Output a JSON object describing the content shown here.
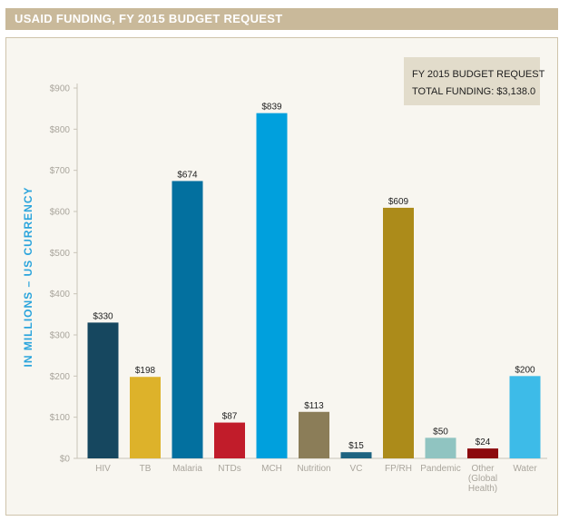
{
  "header": {
    "title": "USAID FUNDING, FY 2015 BUDGET REQUEST"
  },
  "legend_box": {
    "line1": "FY 2015 BUDGET REQUEST",
    "line2": "TOTAL FUNDING: $3,138.0"
  },
  "chart_data": {
    "type": "bar",
    "ylabel": "IN MILLIONS – US CURRENCY",
    "ylim": [
      0,
      900
    ],
    "y_ticks": [
      {
        "value": 0,
        "label": "$0"
      },
      {
        "value": 100,
        "label": "$100"
      },
      {
        "value": 200,
        "label": "$200"
      },
      {
        "value": 300,
        "label": "$300"
      },
      {
        "value": 400,
        "label": "$400"
      },
      {
        "value": 500,
        "label": "$500"
      },
      {
        "value": 600,
        "label": "$600"
      },
      {
        "value": 700,
        "label": "$700"
      },
      {
        "value": 800,
        "label": "$800"
      },
      {
        "value": 900,
        "label": "$900"
      }
    ],
    "categories": [
      {
        "lines": [
          "HIV"
        ]
      },
      {
        "lines": [
          "TB"
        ]
      },
      {
        "lines": [
          "Malaria"
        ]
      },
      {
        "lines": [
          "NTDs"
        ]
      },
      {
        "lines": [
          "MCH"
        ]
      },
      {
        "lines": [
          "Nutrition"
        ]
      },
      {
        "lines": [
          "VC"
        ]
      },
      {
        "lines": [
          "FP/RH"
        ]
      },
      {
        "lines": [
          "Pandemic"
        ]
      },
      {
        "lines": [
          "Other",
          "(Global",
          "Health)"
        ]
      },
      {
        "lines": [
          "Water"
        ]
      }
    ],
    "values": [
      330,
      198,
      674,
      87,
      839,
      113,
      15,
      609,
      50,
      24,
      200
    ],
    "value_labels": [
      "$330",
      "$198",
      "$674",
      "$87",
      "$839",
      "$113",
      "$15",
      "$609",
      "$50",
      "$24",
      "$200"
    ],
    "colors": [
      "#16475f",
      "#ddb22a",
      "#03709f",
      "#c11c2a",
      "#00a0dd",
      "#8b7d58",
      "#1d6380",
      "#ac8b1a",
      "#90c4c1",
      "#8c0a0d",
      "#3dbbe8"
    ],
    "grid": false
  }
}
